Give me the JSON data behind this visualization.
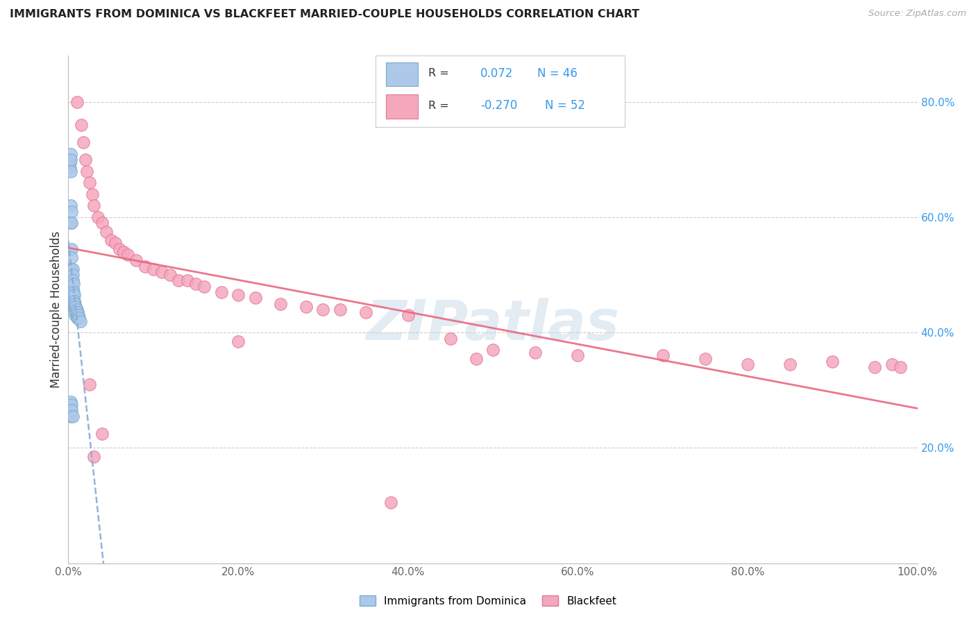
{
  "title": "IMMIGRANTS FROM DOMINICA VS BLACKFEET MARRIED-COUPLE HOUSEHOLDS CORRELATION CHART",
  "source": "Source: ZipAtlas.com",
  "ylabel": "Married-couple Households",
  "xlim": [
    0.0,
    1.0
  ],
  "ylim": [
    0.0,
    0.88
  ],
  "r_dominica": 0.072,
  "n_dominica": 46,
  "r_blackfeet": -0.27,
  "n_blackfeet": 52,
  "dominica_color": "#adc8e8",
  "blackfeet_color": "#f5a8bc",
  "dominica_edge_color": "#7aaad0",
  "blackfeet_edge_color": "#e07898",
  "dominica_line_color": "#88aad8",
  "blackfeet_line_color": "#e86880",
  "watermark": "ZIPatlas",
  "dominica_x": [
    0.002,
    0.002,
    0.002,
    0.003,
    0.003,
    0.003,
    0.003,
    0.003,
    0.004,
    0.004,
    0.004,
    0.004,
    0.004,
    0.005,
    0.005,
    0.005,
    0.005,
    0.005,
    0.005,
    0.006,
    0.006,
    0.006,
    0.006,
    0.007,
    0.007,
    0.007,
    0.007,
    0.008,
    0.008,
    0.008,
    0.009,
    0.009,
    0.01,
    0.01,
    0.01,
    0.011,
    0.011,
    0.012,
    0.013,
    0.014,
    0.003,
    0.003,
    0.003,
    0.004,
    0.004,
    0.005
  ],
  "dominica_y": [
    0.7,
    0.695,
    0.685,
    0.71,
    0.7,
    0.68,
    0.62,
    0.59,
    0.61,
    0.59,
    0.545,
    0.53,
    0.51,
    0.51,
    0.5,
    0.49,
    0.475,
    0.465,
    0.455,
    0.485,
    0.47,
    0.46,
    0.45,
    0.465,
    0.455,
    0.445,
    0.44,
    0.45,
    0.44,
    0.43,
    0.445,
    0.435,
    0.44,
    0.43,
    0.425,
    0.435,
    0.425,
    0.43,
    0.425,
    0.42,
    0.28,
    0.265,
    0.255,
    0.275,
    0.265,
    0.255
  ],
  "blackfeet_x": [
    0.01,
    0.015,
    0.018,
    0.02,
    0.022,
    0.025,
    0.028,
    0.03,
    0.035,
    0.04,
    0.045,
    0.05,
    0.055,
    0.06,
    0.065,
    0.07,
    0.08,
    0.09,
    0.1,
    0.11,
    0.12,
    0.13,
    0.14,
    0.15,
    0.16,
    0.18,
    0.2,
    0.22,
    0.25,
    0.28,
    0.3,
    0.32,
    0.35,
    0.4,
    0.45,
    0.5,
    0.55,
    0.6,
    0.7,
    0.75,
    0.8,
    0.85,
    0.9,
    0.95,
    0.97,
    0.98,
    0.025,
    0.03,
    0.04,
    0.2,
    0.48,
    0.38
  ],
  "blackfeet_y": [
    0.8,
    0.76,
    0.73,
    0.7,
    0.68,
    0.66,
    0.64,
    0.62,
    0.6,
    0.59,
    0.575,
    0.56,
    0.555,
    0.545,
    0.54,
    0.535,
    0.525,
    0.515,
    0.51,
    0.505,
    0.5,
    0.49,
    0.49,
    0.485,
    0.48,
    0.47,
    0.465,
    0.46,
    0.45,
    0.445,
    0.44,
    0.44,
    0.435,
    0.43,
    0.39,
    0.37,
    0.365,
    0.36,
    0.36,
    0.355,
    0.345,
    0.345,
    0.35,
    0.34,
    0.345,
    0.34,
    0.31,
    0.185,
    0.225,
    0.385,
    0.355,
    0.105
  ]
}
